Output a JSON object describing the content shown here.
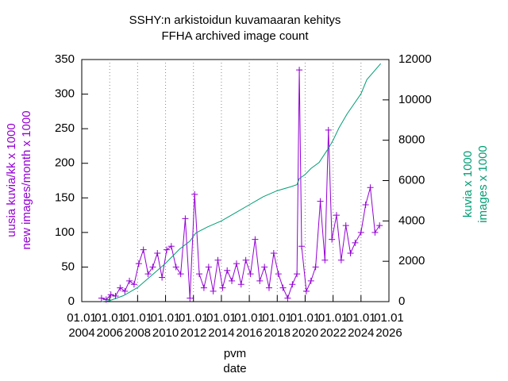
{
  "chart_data": {
    "type": "line",
    "title": [
      "SSHY:n arkistoidun kuvamaaran kehitys",
      "FFHA archived image count"
    ],
    "ylabel": [
      "uusia kuvia/kk x 1000",
      "new images/month x 1000"
    ],
    "y2label": [
      "kuvia x 1000",
      "images x 1000"
    ],
    "xlabel": [
      "pvm",
      "date"
    ],
    "xlim": [
      "2004-01-01",
      "2026-01-01"
    ],
    "xticks": [
      {
        "value": "2004-01-01",
        "label": [
          "01.01",
          "2004"
        ]
      },
      {
        "value": "2006-01-01",
        "label": [
          "01.01",
          "2006"
        ]
      },
      {
        "value": "2008-01-01",
        "label": [
          "01.01",
          "2008"
        ]
      },
      {
        "value": "2010-01-01",
        "label": [
          "01.01",
          "2010"
        ]
      },
      {
        "value": "2012-01-01",
        "label": [
          "01.01",
          "2012"
        ]
      },
      {
        "value": "2014-01-01",
        "label": [
          "01.01",
          "2014"
        ]
      },
      {
        "value": "2016-01-01",
        "label": [
          "01.01",
          "2016"
        ]
      },
      {
        "value": "2018-01-01",
        "label": [
          "01.01",
          "2018"
        ]
      },
      {
        "value": "2020-01-01",
        "label": [
          "01.01",
          "2020"
        ]
      },
      {
        "value": "2022-01-01",
        "label": [
          "01.01",
          "2022"
        ]
      },
      {
        "value": "2024-01-01",
        "label": [
          "01.01",
          "2024"
        ]
      },
      {
        "value": "2026-01-01",
        "label": [
          "01.01",
          "2026"
        ]
      }
    ],
    "ylim": [
      0,
      350
    ],
    "yticks": [
      0,
      50,
      100,
      150,
      200,
      250,
      300,
      350
    ],
    "y2lim": [
      0,
      12000
    ],
    "y2ticks": [
      0,
      2000,
      4000,
      6000,
      8000,
      10000,
      12000
    ],
    "grid": "x",
    "series": [
      {
        "color": "#9400d3",
        "marker": "+",
        "axis": "y",
        "x": [
          "2005-06",
          "2005-10",
          "2006-02",
          "2006-06",
          "2006-10",
          "2007-02",
          "2007-06",
          "2007-10",
          "2008-02",
          "2008-06",
          "2008-10",
          "2009-02",
          "2009-06",
          "2009-10",
          "2010-02",
          "2010-06",
          "2010-10",
          "2011-02",
          "2011-06",
          "2011-10",
          "2012-02",
          "2012-06",
          "2012-10",
          "2013-02",
          "2013-06",
          "2013-10",
          "2014-02",
          "2014-06",
          "2014-10",
          "2015-02",
          "2015-06",
          "2015-10",
          "2016-02",
          "2016-06",
          "2016-10",
          "2017-02",
          "2017-06",
          "2017-10",
          "2018-02",
          "2018-06",
          "2018-10",
          "2019-02",
          "2019-06",
          "2019-08",
          "2019-10",
          "2020-02",
          "2020-06",
          "2020-10",
          "2021-02",
          "2021-06",
          "2021-09",
          "2021-12",
          "2022-04",
          "2022-08",
          "2022-12",
          "2023-04",
          "2023-08",
          "2024-01",
          "2024-05",
          "2024-09",
          "2025-01",
          "2025-05"
        ],
        "values": [
          5,
          3,
          10,
          8,
          20,
          15,
          30,
          25,
          55,
          75,
          40,
          50,
          70,
          35,
          75,
          80,
          50,
          40,
          120,
          5,
          155,
          40,
          20,
          50,
          15,
          60,
          20,
          45,
          30,
          55,
          25,
          60,
          40,
          90,
          30,
          50,
          20,
          70,
          40,
          20,
          5,
          25,
          40,
          335,
          80,
          15,
          30,
          50,
          145,
          60,
          248,
          90,
          125,
          60,
          110,
          70,
          85,
          100,
          140,
          165,
          100,
          110
        ]
      },
      {
        "color": "#009e73",
        "axis": "y2",
        "x": [
          "2005-06",
          "2006-01",
          "2007-01",
          "2008-01",
          "2009-01",
          "2010-01",
          "2011-01",
          "2011-10",
          "2012-03",
          "2013-01",
          "2014-01",
          "2015-01",
          "2016-01",
          "2017-01",
          "2018-01",
          "2019-01",
          "2019-06",
          "2019-08",
          "2020-01",
          "2020-06",
          "2021-01",
          "2021-09",
          "2022-01",
          "2022-06",
          "2023-01",
          "2024-01",
          "2024-06",
          "2025-06"
        ],
        "values": [
          0,
          50,
          300,
          700,
          1300,
          1900,
          2600,
          3000,
          3400,
          3700,
          4000,
          4400,
          4800,
          5200,
          5500,
          5700,
          5800,
          6100,
          6300,
          6600,
          6900,
          7600,
          8000,
          8600,
          9300,
          10300,
          11000,
          11800
        ]
      }
    ]
  }
}
